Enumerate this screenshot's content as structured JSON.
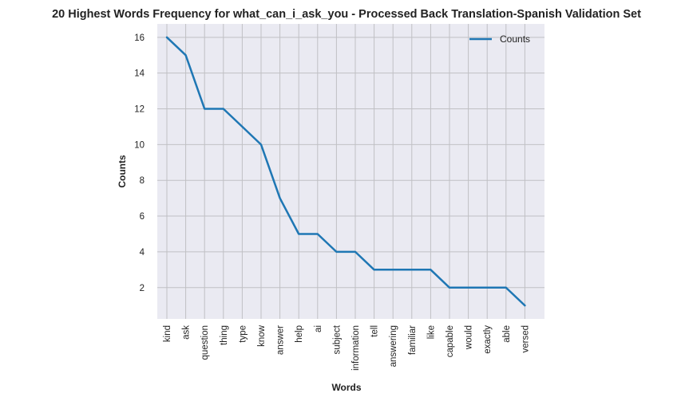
{
  "chart_data": {
    "type": "line",
    "title": "20 Highest Words Frequency for what_can_i_ask_you - Processed Back Translation-Spanish Validation Set",
    "xlabel": "Words",
    "ylabel": "Counts",
    "categories": [
      "kind",
      "ask",
      "question",
      "thing",
      "type",
      "know",
      "answer",
      "help",
      "ai",
      "subject",
      "information",
      "tell",
      "answering",
      "familiar",
      "like",
      "capable",
      "would",
      "exactly",
      "able",
      "versed"
    ],
    "series": [
      {
        "name": "Counts",
        "values": [
          16,
          15,
          12,
          12,
          11,
          10,
          7,
          5,
          5,
          4,
          4,
          3,
          3,
          3,
          3,
          2,
          2,
          2,
          2,
          1
        ],
        "color": "#1f77b4"
      }
    ],
    "ylim": [
      0.25,
      16.75
    ],
    "yticks": [
      2,
      4,
      6,
      8,
      10,
      12,
      14,
      16
    ],
    "grid": true,
    "legend_position": "top-right",
    "background": "#eaeaf2",
    "grid_color": "#c0c0c4"
  }
}
